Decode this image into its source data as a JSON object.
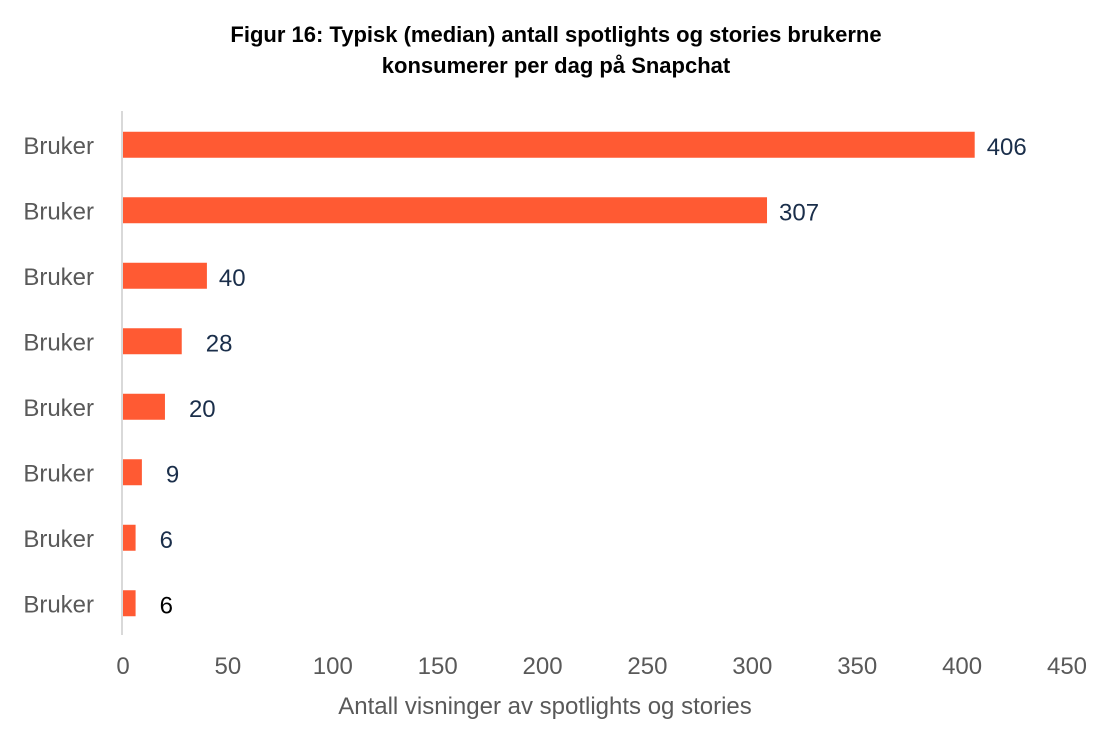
{
  "chart_data": {
    "type": "bar",
    "orientation": "horizontal",
    "title_lines": [
      "Figur 16: Typisk (median) antall spotlights og stories brukerne",
      "konsumerer per dag på Snapchat"
    ],
    "categories": [
      "Bruker",
      "Bruker",
      "Bruker",
      "Bruker",
      "Bruker",
      "Bruker",
      "Bruker",
      "Bruker"
    ],
    "values": [
      406,
      307,
      40,
      28,
      20,
      9,
      6,
      6
    ],
    "xlabel": "Antall visninger av spotlights og stories",
    "ylabel": "",
    "xlim": [
      0,
      450
    ],
    "xticks": [
      0,
      50,
      100,
      150,
      200,
      250,
      300,
      350,
      400,
      450
    ],
    "grid": false,
    "colors": {
      "bar": "#ff5a33",
      "data_label": "#1a2e4a",
      "last_data_label": "#000000",
      "tick_label": "#595959",
      "axis": "#d9d9d9"
    }
  }
}
